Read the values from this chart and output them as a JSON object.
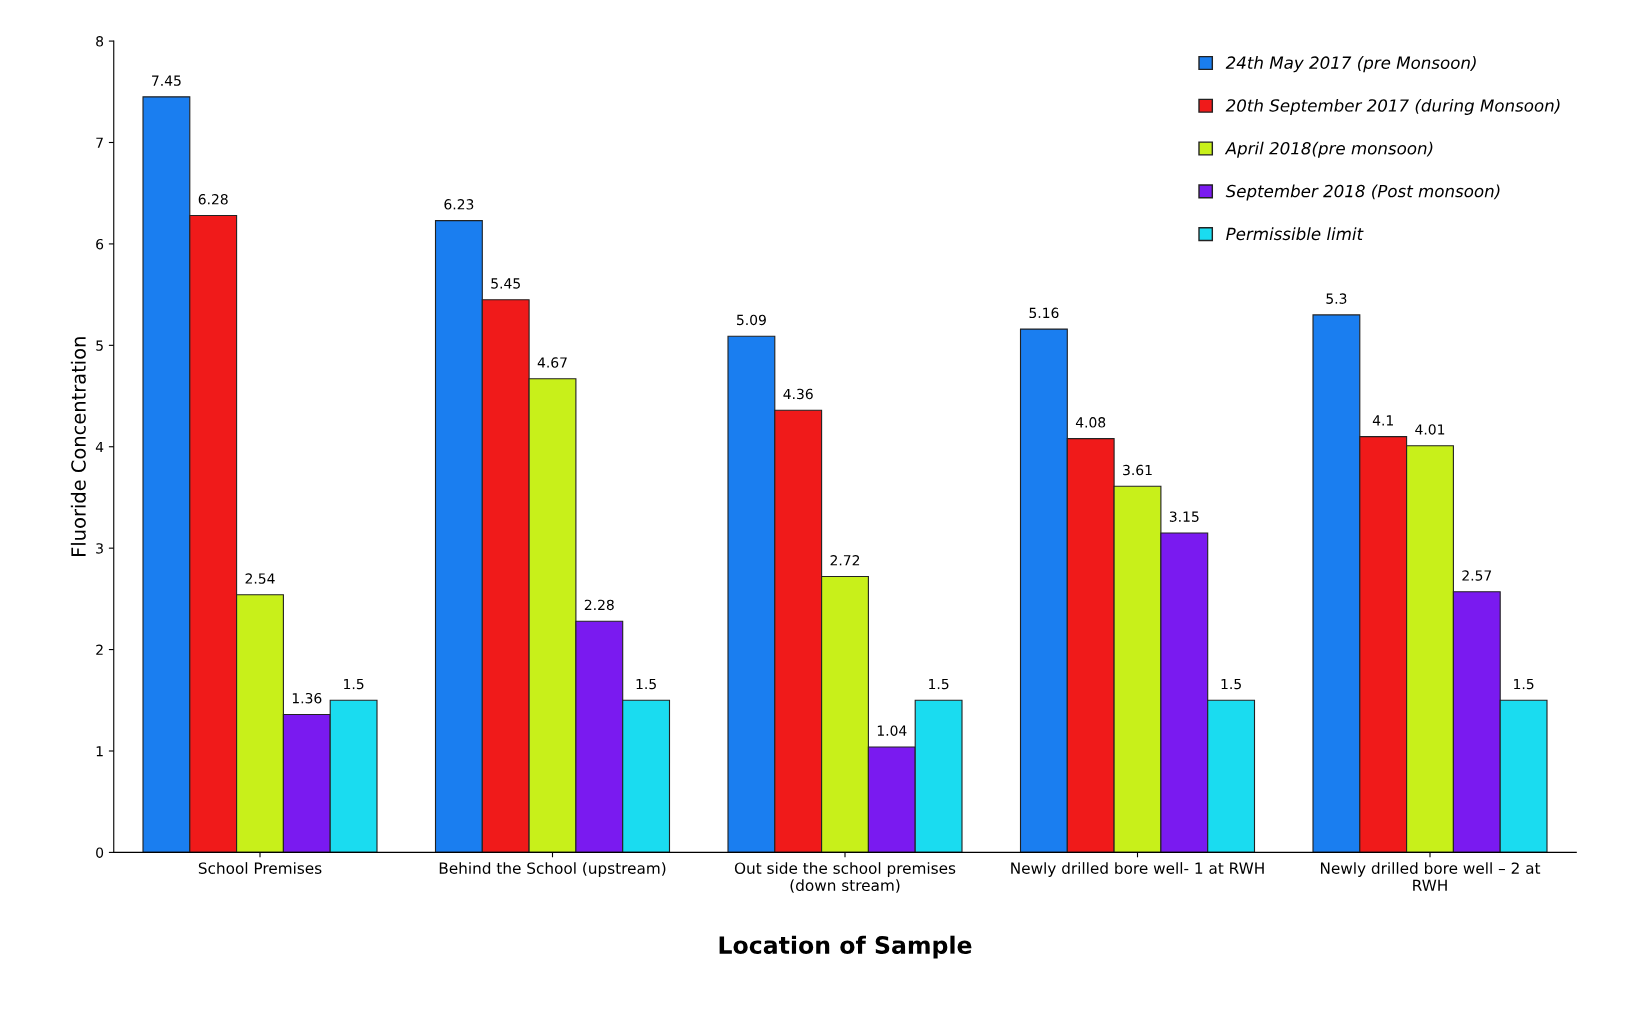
{
  "chart_data": {
    "type": "bar",
    "xlabel": "Location of Sample",
    "ylabel": "Fluoride Concentration",
    "categories": [
      "School Premises",
      "Behind the School (upstream)",
      "Out side the school premises\n(down stream)",
      "Newly drilled bore well- 1 at RWH",
      "Newly drilled bore well – 2 at\nRWH"
    ],
    "series": [
      {
        "name": "24th May 2017 (pre Monsoon)",
        "color": "#1a7ef0",
        "values": [
          7.45,
          6.23,
          5.09,
          5.16,
          5.3
        ]
      },
      {
        "name": "20th September 2017 (during Monsoon)",
        "color": "#f01a1a",
        "values": [
          6.28,
          5.45,
          4.36,
          4.08,
          4.1
        ]
      },
      {
        "name": "April 2018(pre monsoon)",
        "color": "#c8f01a",
        "values": [
          2.54,
          4.67,
          2.72,
          3.61,
          4.01
        ]
      },
      {
        "name": "September 2018 (Post monsoon)",
        "color": "#7a1af0",
        "values": [
          1.36,
          2.28,
          1.04,
          3.15,
          2.57
        ]
      },
      {
        "name": "Permissible limit",
        "color": "#1adcf0",
        "values": [
          1.5,
          1.5,
          1.5,
          1.5,
          1.5
        ]
      }
    ],
    "ylim": [
      0,
      8
    ],
    "yticks": [
      0,
      1,
      2,
      3,
      4,
      5,
      6,
      7,
      8
    ],
    "data_labels": true,
    "legend": "top right",
    "grid": false
  }
}
